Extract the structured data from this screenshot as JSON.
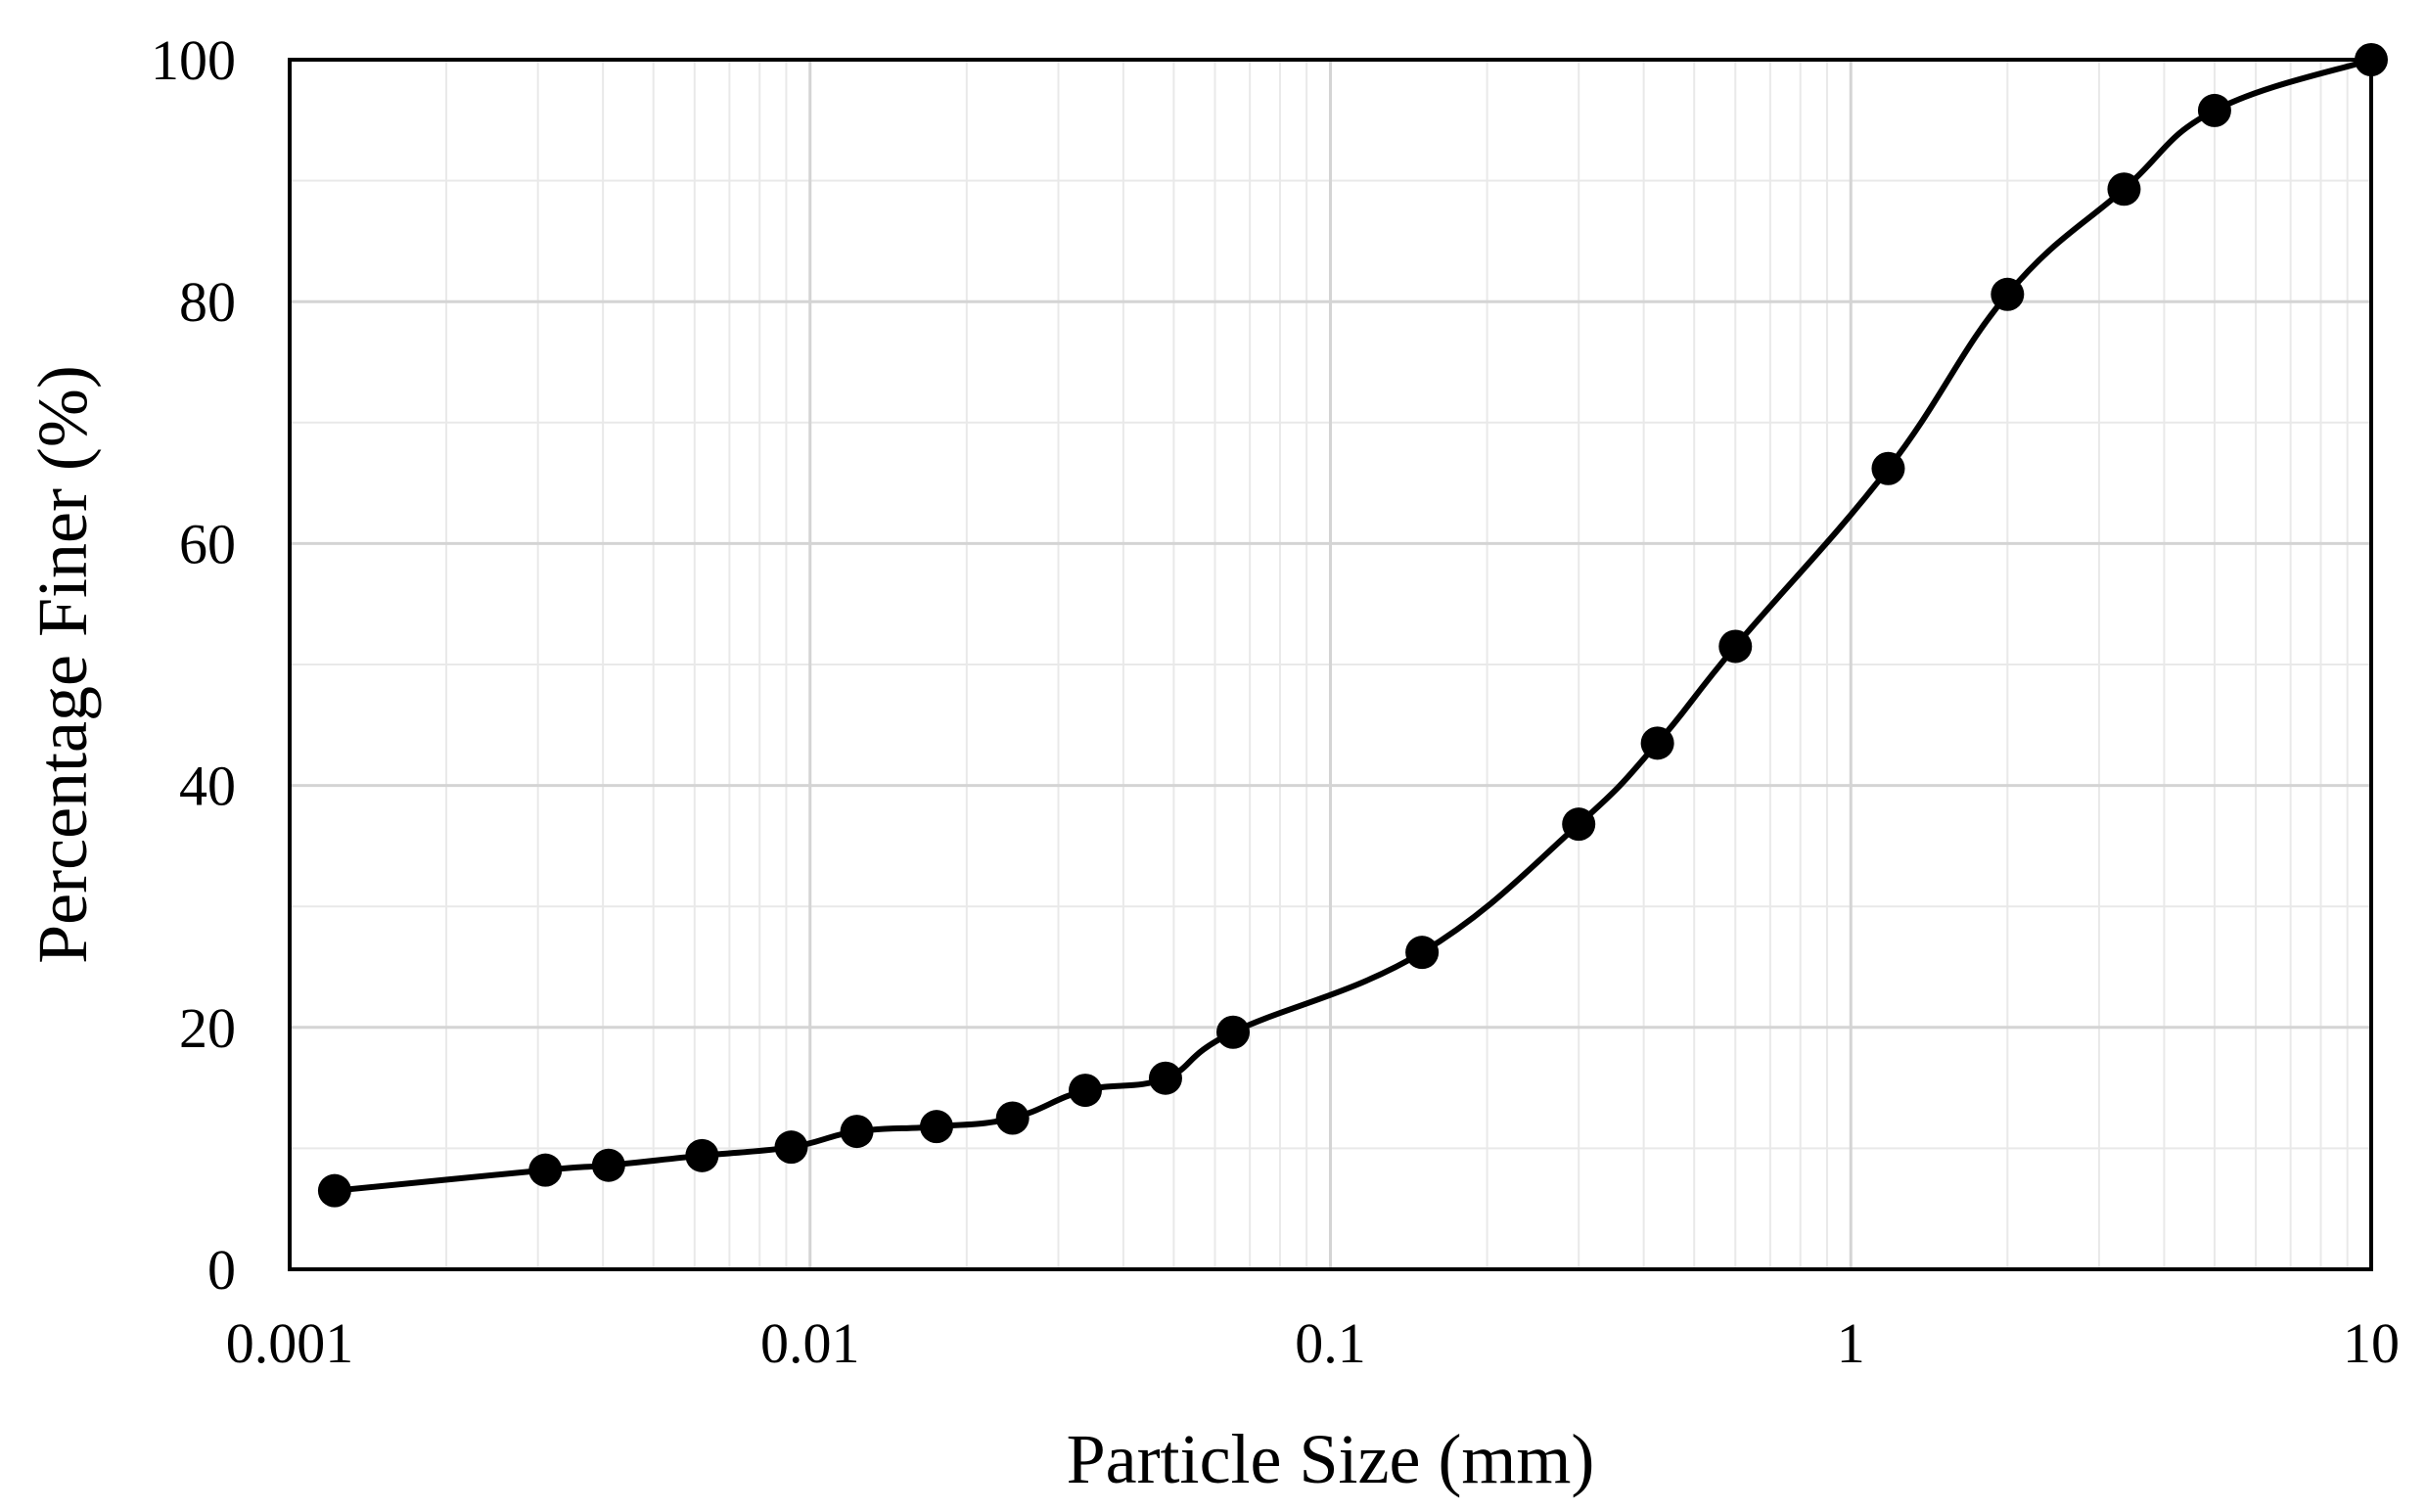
{
  "chart_data": {
    "type": "line",
    "title": "",
    "xlabel": "Particle Size (mm)",
    "ylabel": "Percentage Finer (%)",
    "x_scale": "log",
    "xlim": [
      0.001,
      10
    ],
    "ylim": [
      0,
      100
    ],
    "x_ticks": [
      0.001,
      0.01,
      0.1,
      1,
      10
    ],
    "x_tick_labels": [
      "0.001",
      "0.01",
      "0.1",
      "1",
      "10"
    ],
    "y_ticks": [
      0,
      20,
      40,
      60,
      80,
      100
    ],
    "y_tick_labels": [
      "0",
      "20",
      "40",
      "60",
      "80",
      "100"
    ],
    "grid": true,
    "legend": "none",
    "markers": "filled-circle",
    "line_color": "#000000",
    "series": [
      {
        "x": [
          0.00122,
          0.0031,
          0.0041,
          0.0062,
          0.0092,
          0.0123,
          0.0175,
          0.0245,
          0.0338,
          0.0482,
          0.065,
          0.15,
          0.3,
          0.425,
          0.6,
          1.18,
          2.0,
          3.35,
          5.0,
          10.0
        ],
        "y": [
          6.5,
          8.2,
          8.6,
          9.4,
          10.1,
          11.4,
          11.8,
          12.5,
          14.8,
          15.8,
          19.6,
          26.2,
          36.8,
          43.5,
          51.5,
          66.2,
          80.6,
          89.3,
          95.8,
          100
        ]
      }
    ]
  }
}
